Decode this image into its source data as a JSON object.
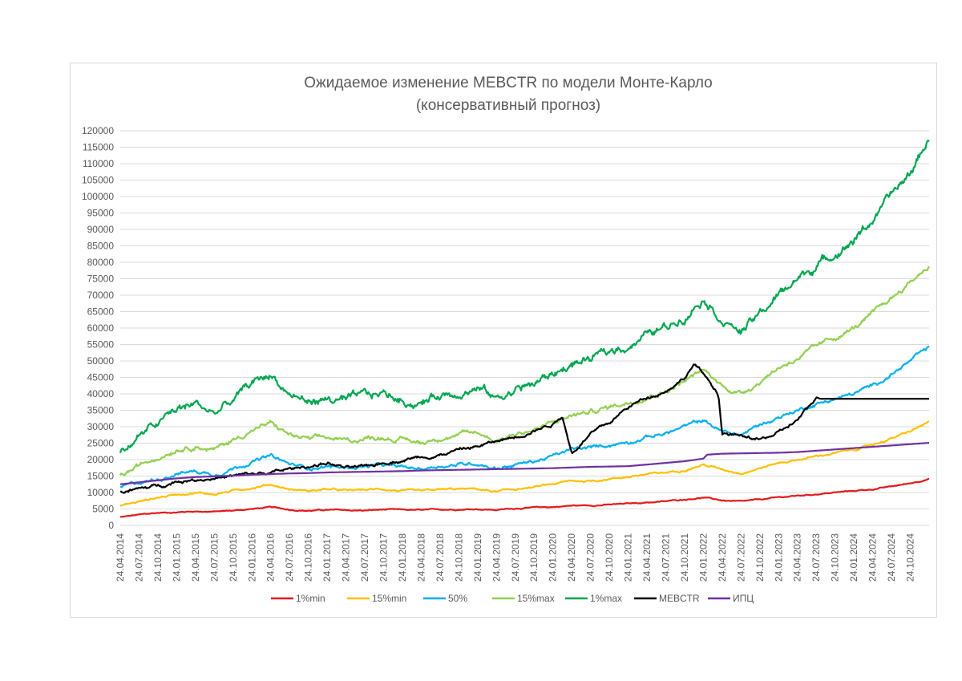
{
  "chart_data": {
    "type": "line",
    "title": "Ожидаемое изменение MEBCTR по модели Монте-Карло",
    "subtitle": "(консервативный прогноз)",
    "xlabel": "",
    "ylabel": "",
    "ylim": [
      0,
      120000
    ],
    "y_ticks": [
      "0",
      "5000",
      "10000",
      "15000",
      "20000",
      "25000",
      "30000",
      "35000",
      "40000",
      "45000",
      "50000",
      "55000",
      "60000",
      "65000",
      "70000",
      "75000",
      "80000",
      "85000",
      "90000",
      "95000",
      "100000",
      "105000",
      "110000",
      "115000",
      "120000"
    ],
    "x_ticks": [
      "24.04.2014",
      "24.07.2014",
      "24.10.2014",
      "24.01.2015",
      "24.04.2015",
      "24.07.2015",
      "24.10.2015",
      "24.01.2016",
      "24.04.2016",
      "24.07.2016",
      "24.10.2016",
      "24.01.2017",
      "24.04.2017",
      "24.07.2017",
      "24.10.2017",
      "24.01.2018",
      "24.04.2018",
      "24.07.2018",
      "24.10.2018",
      "24.01.2019",
      "24.04.2019",
      "24.07.2019",
      "24.10.2019",
      "24.01.2020",
      "24.04.2020",
      "24.07.2020",
      "24.10.2020",
      "24.01.2021",
      "24.04.2021",
      "24.07.2021",
      "24.10.2021",
      "24.01.2022",
      "24.04.2022",
      "24.07.2022",
      "24.10.2022",
      "24.01.2023",
      "24.04.2023",
      "24.07.2023",
      "24.10.2023",
      "24.01.2024",
      "24.04.2024",
      "24.07.2024",
      "24.10.2024"
    ],
    "x_range": [
      0,
      43
    ],
    "legend_position": "bottom",
    "grid": true,
    "series": [
      {
        "name": "1%min",
        "color": "#e31a1c",
        "x": [
          0,
          1,
          2,
          3,
          4,
          5,
          6,
          7,
          8,
          9,
          10,
          11,
          12,
          13,
          14,
          15,
          16,
          17,
          18,
          19,
          20,
          21,
          22,
          23,
          24,
          25,
          26,
          27,
          28,
          29,
          30,
          31,
          32,
          33,
          34,
          35,
          36,
          37,
          38,
          39,
          40,
          41,
          42,
          43
        ],
        "y": [
          2500,
          3200,
          3800,
          4000,
          4300,
          4200,
          4500,
          5000,
          5500,
          4800,
          4500,
          4700,
          4600,
          4500,
          4800,
          4700,
          4600,
          4800,
          4900,
          5000,
          4700,
          5200,
          5400,
          5600,
          6000,
          6100,
          6300,
          6600,
          7000,
          7300,
          7900,
          8500,
          7600,
          7200,
          7800,
          8500,
          9000,
          9500,
          10000,
          10500,
          11000,
          11800,
          12800,
          14200
        ],
        "noise": 200
      },
      {
        "name": "15%min",
        "color": "#ffc000",
        "x": [
          0,
          1,
          2,
          3,
          4,
          5,
          6,
          7,
          8,
          9,
          10,
          11,
          12,
          13,
          14,
          15,
          16,
          17,
          18,
          19,
          20,
          21,
          22,
          23,
          24,
          25,
          26,
          27,
          28,
          29,
          30,
          31,
          32,
          33,
          34,
          35,
          36,
          37,
          38,
          39,
          40,
          41,
          42,
          43
        ],
        "y": [
          6000,
          7200,
          8500,
          9500,
          10000,
          9500,
          10500,
          11500,
          12500,
          11000,
          10500,
          11000,
          10500,
          10800,
          11000,
          10500,
          10200,
          10800,
          11000,
          11000,
          10200,
          11000,
          11500,
          12500,
          13500,
          13500,
          14200,
          14800,
          15500,
          16000,
          17000,
          18500,
          17000,
          16000,
          17500,
          19000,
          20000,
          21000,
          22000,
          23000,
          24500,
          26500,
          28500,
          31500
        ],
        "noise": 350
      },
      {
        "name": "50%",
        "color": "#00b0f0",
        "x": [
          0,
          1,
          2,
          3,
          4,
          5,
          6,
          7,
          8,
          9,
          10,
          11,
          12,
          13,
          14,
          15,
          16,
          17,
          18,
          19,
          20,
          21,
          22,
          23,
          24,
          25,
          26,
          27,
          28,
          29,
          30,
          31,
          32,
          33,
          34,
          35,
          36,
          37,
          38,
          39,
          40,
          41,
          42,
          43
        ],
        "y": [
          11500,
          13000,
          14000,
          16000,
          16500,
          15500,
          17500,
          19500,
          21000,
          18500,
          17500,
          18000,
          17500,
          18000,
          18200,
          17500,
          17200,
          18200,
          18500,
          19000,
          17500,
          18500,
          19500,
          21000,
          23000,
          23500,
          24500,
          25500,
          27000,
          28000,
          30000,
          32000,
          28500,
          27500,
          30500,
          33000,
          35000,
          37000,
          38500,
          40000,
          42500,
          46000,
          50000,
          54000
        ],
        "noise": 650
      },
      {
        "name": "15%max",
        "color": "#92d050",
        "x": [
          0,
          1,
          2,
          3,
          4,
          5,
          6,
          7,
          8,
          9,
          10,
          11,
          12,
          13,
          14,
          15,
          16,
          17,
          18,
          19,
          20,
          21,
          22,
          23,
          24,
          25,
          26,
          27,
          28,
          29,
          30,
          31,
          32,
          33,
          34,
          35,
          36,
          37,
          38,
          39,
          40,
          41,
          42,
          43
        ],
        "y": [
          15000,
          18000,
          21000,
          23500,
          24500,
          23000,
          26000,
          29000,
          31000,
          27500,
          26000,
          26500,
          25500,
          26500,
          27000,
          26000,
          25000,
          27000,
          27500,
          28000,
          26000,
          28000,
          29000,
          31000,
          33500,
          34500,
          36000,
          37500,
          39500,
          41000,
          44000,
          47000,
          42500,
          40000,
          44000,
          48000,
          51000,
          54000,
          57000,
          60000,
          64000,
          69000,
          74000,
          79000
        ],
        "noise": 900
      },
      {
        "name": "1%max",
        "color": "#00a650",
        "x": [
          0,
          1,
          2,
          3,
          4,
          5,
          6,
          7,
          8,
          9,
          10,
          11,
          12,
          13,
          14,
          15,
          16,
          17,
          18,
          19,
          20,
          21,
          22,
          23,
          24,
          25,
          26,
          27,
          28,
          29,
          30,
          31,
          32,
          33,
          34,
          35,
          36,
          37,
          38,
          39,
          40,
          41,
          42,
          43
        ],
        "y": [
          22000,
          27000,
          31000,
          35000,
          37000,
          34000,
          38000,
          43000,
          46000,
          40000,
          37500,
          38500,
          37500,
          39000,
          40000,
          38000,
          37000,
          40000,
          41000,
          42000,
          38500,
          41500,
          43000,
          46000,
          49000,
          50500,
          52500,
          55000,
          58000,
          60000,
          64000,
          70000,
          63000,
          59000,
          64000,
          70000,
          75000,
          79000,
          83000,
          87000,
          93000,
          100000,
          107000,
          118000
        ],
        "noise": 1600
      },
      {
        "name": "MEBCTR",
        "color": "#000000",
        "x": [
          0,
          1,
          2,
          3,
          4,
          5,
          6,
          7,
          8,
          9,
          10,
          11,
          12,
          13,
          14,
          15,
          16,
          17,
          18,
          19,
          20,
          21,
          22,
          23,
          23.5,
          24,
          25,
          26,
          27,
          28,
          29,
          30,
          30.5,
          31,
          31.8,
          32,
          33,
          34,
          35,
          36,
          36.8,
          37,
          37.2,
          38,
          39,
          40,
          41,
          42,
          43
        ],
        "y": [
          10000,
          11000,
          12000,
          13500,
          14000,
          14500,
          15000,
          15500,
          16000,
          17000,
          18000,
          19000,
          17500,
          17500,
          19000,
          20000,
          21000,
          21500,
          23000,
          24000,
          25500,
          27000,
          29000,
          31000,
          33500,
          22000,
          28000,
          31000,
          36000,
          39000,
          41000,
          45000,
          49000,
          46000,
          40000,
          28000,
          27000,
          26000,
          28000,
          32000,
          37000,
          39000,
          38500,
          38500,
          38500,
          38500,
          38500,
          38500,
          38500
        ],
        "stop_noise_after": 37,
        "noise": 600
      },
      {
        "name": "ИПЦ",
        "color": "#7030a0",
        "x": [
          0,
          1,
          2,
          3,
          4,
          5,
          6,
          7,
          8,
          9,
          10,
          11,
          12,
          13,
          14,
          15,
          16,
          17,
          18,
          19,
          20,
          21,
          22,
          23,
          24,
          25,
          26,
          27,
          28,
          29,
          30,
          31,
          31.2,
          32,
          33,
          34,
          35,
          36,
          37,
          38,
          39,
          40,
          41,
          42,
          43
        ],
        "y": [
          12500,
          13100,
          13700,
          14300,
          14700,
          14900,
          15100,
          15400,
          15600,
          15800,
          15900,
          16100,
          16200,
          16300,
          16400,
          16500,
          16700,
          16800,
          16900,
          17000,
          17100,
          17200,
          17300,
          17400,
          17600,
          17800,
          17900,
          18000,
          18500,
          19000,
          19500,
          20300,
          21500,
          21800,
          21900,
          22000,
          22100,
          22300,
          22700,
          23100,
          23500,
          23900,
          24300,
          24700,
          25100
        ],
        "noise": 0
      }
    ]
  }
}
